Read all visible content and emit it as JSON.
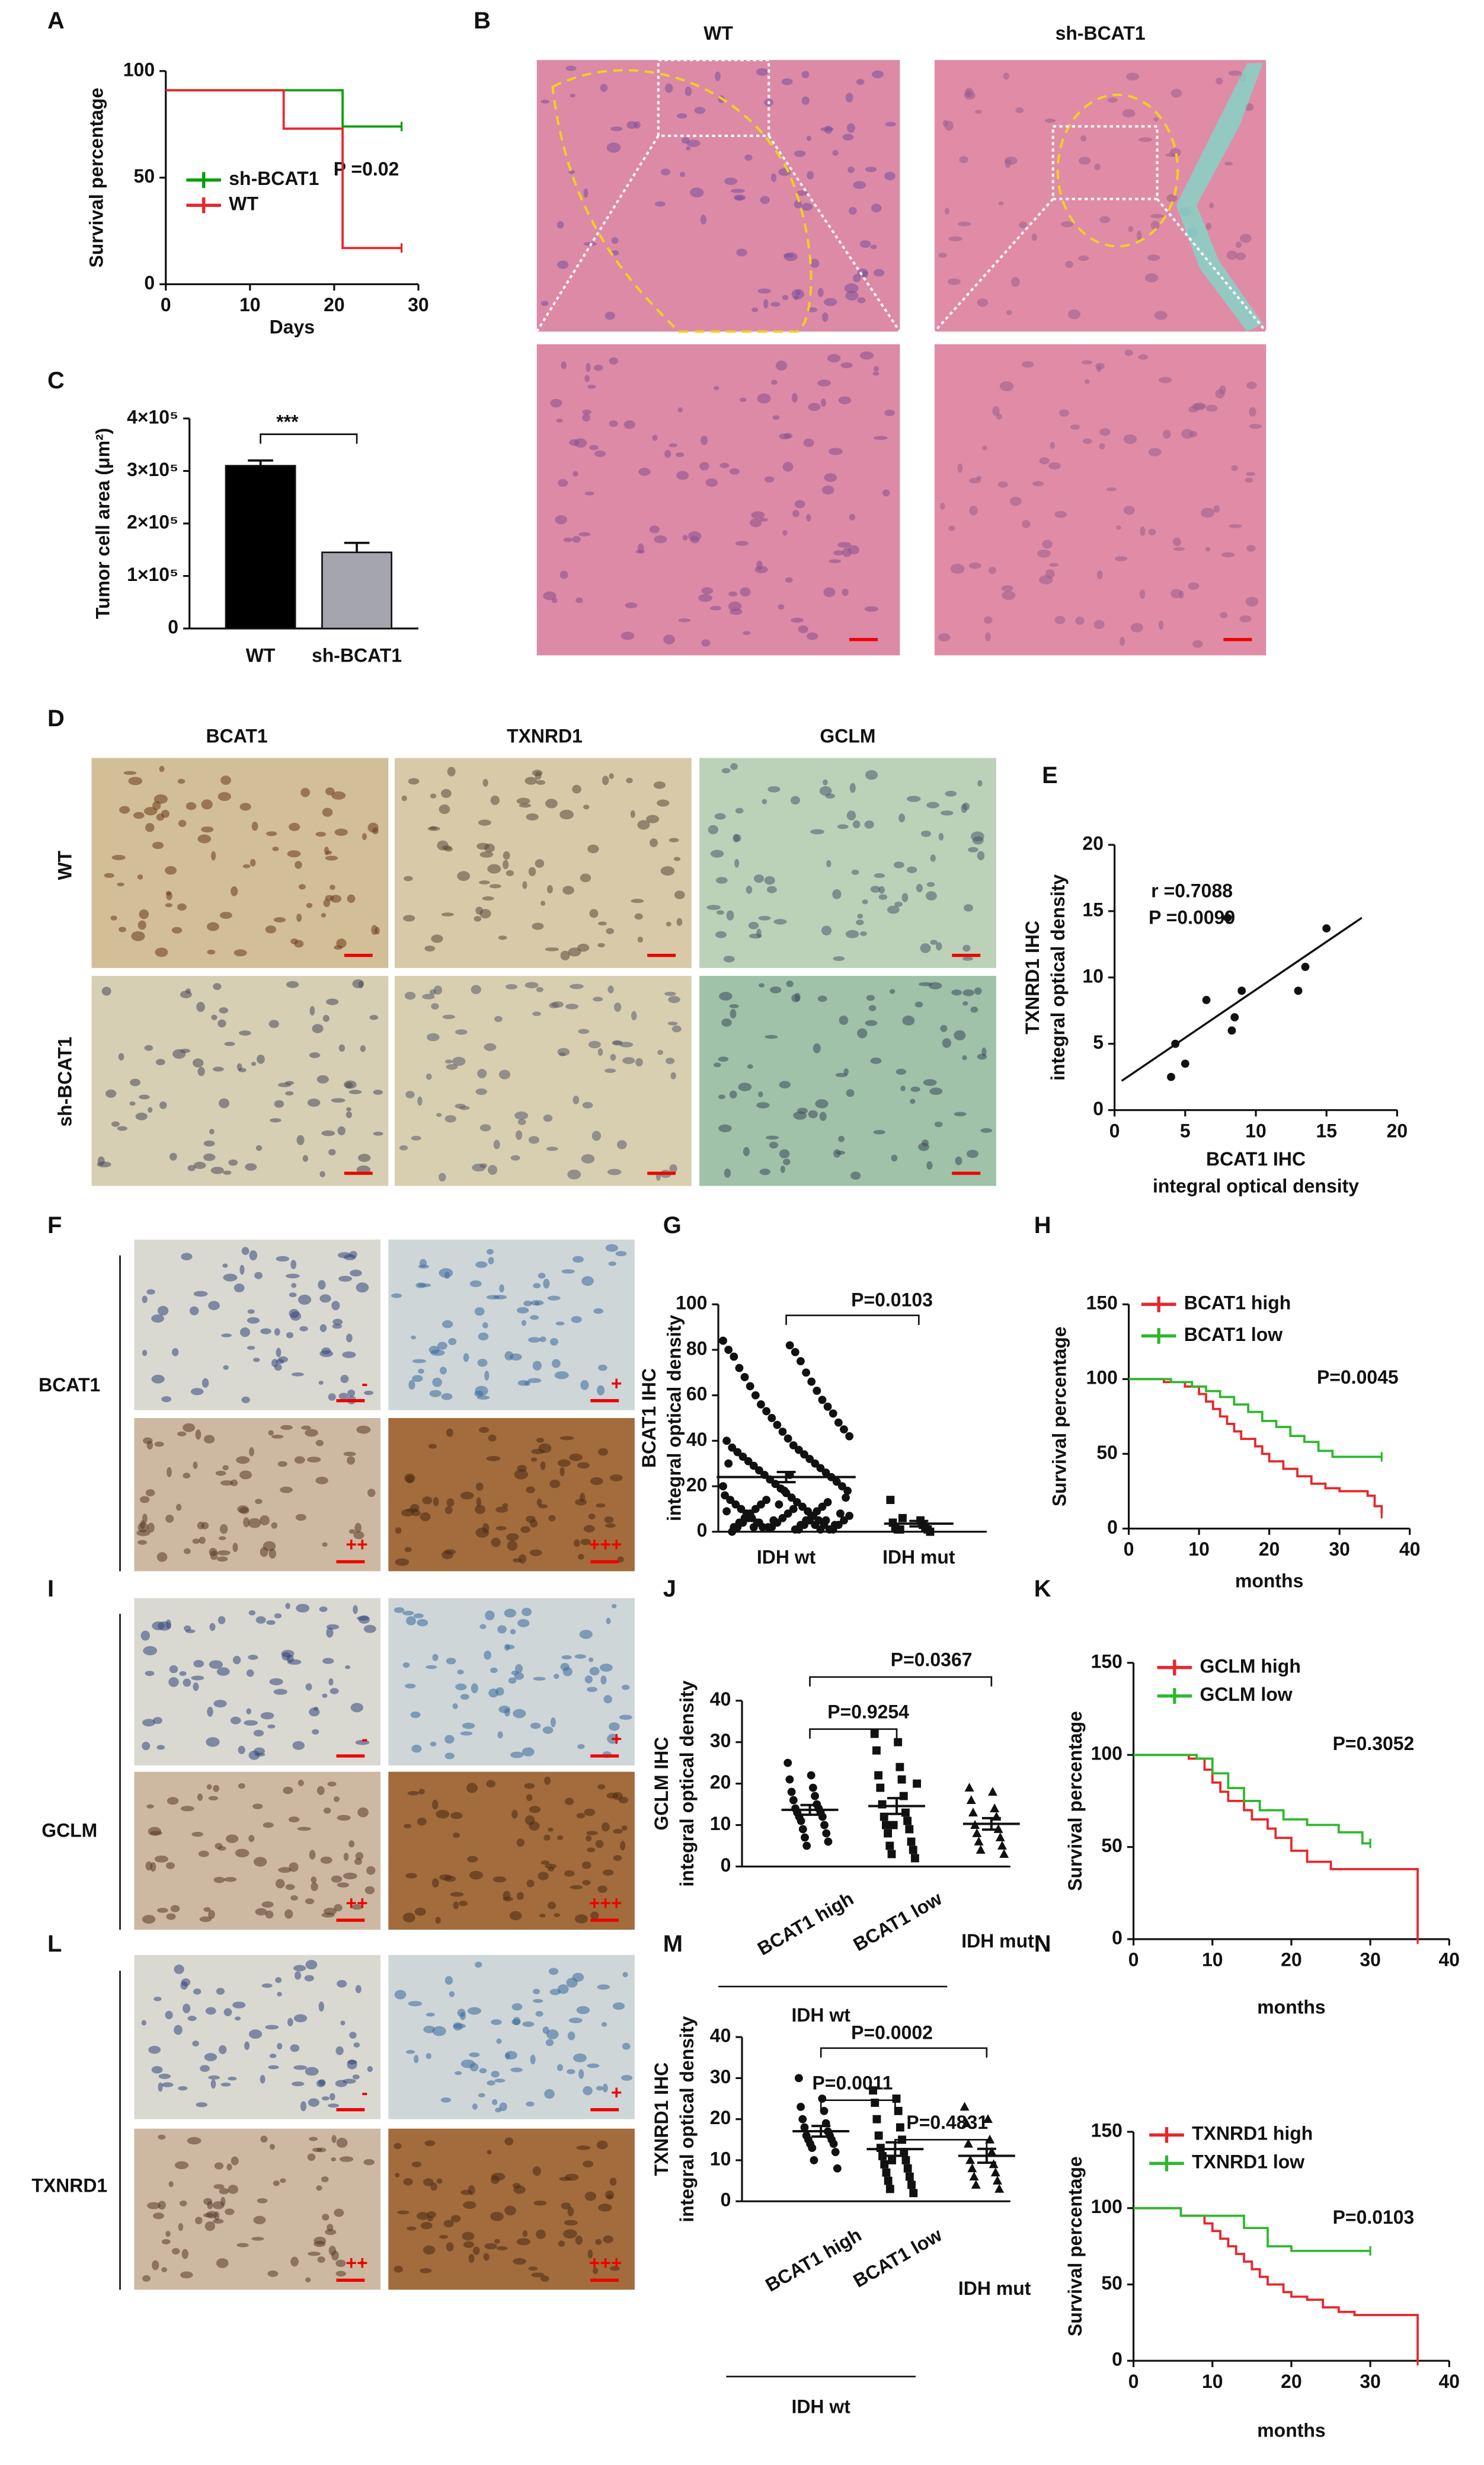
{
  "panel_labels": [
    "A",
    "B",
    "C",
    "D",
    "E",
    "F",
    "G",
    "H",
    "I",
    "J",
    "K",
    "L",
    "M",
    "N"
  ],
  "micrographs": {
    "B": {
      "columns": [
        "WT",
        "sh-BCAT1"
      ]
    },
    "D": {
      "columns": [
        "BCAT1",
        "TXNRD1",
        "GCLM"
      ],
      "rows": [
        "WT",
        "sh-BCAT1"
      ]
    },
    "F": {
      "row_label": "BCAT1",
      "grades": [
        "-",
        "+",
        "++",
        "+++"
      ]
    },
    "I": {
      "row_label": "GCLM",
      "grades": [
        "-",
        "+",
        "++",
        "+++"
      ]
    },
    "L": {
      "row_label": "TXNRD1",
      "grades": [
        "-",
        "+",
        "++",
        "+++"
      ]
    }
  },
  "chart_data": [
    {
      "type": "step",
      "ylabel": "Survival percentage",
      "xlabel": "Days",
      "xlim": [
        0,
        30
      ],
      "xticks": [
        0,
        10,
        20,
        30
      ],
      "ylim": [
        0,
        100
      ],
      "yticks": [
        0,
        50,
        100
      ],
      "series": [
        {
          "name": "sh-BCAT1",
          "color": "#00a000",
          "x": [
            0,
            21,
            28
          ],
          "values": [
            91,
            74,
            74
          ]
        },
        {
          "name": "WT",
          "color": "#e8262b",
          "x": [
            0,
            14,
            21,
            28
          ],
          "values": [
            91,
            73,
            17,
            17
          ]
        }
      ],
      "annotations": [
        "P =0.02"
      ]
    },
    {
      "type": "bar",
      "ylabel": "Tumor cell area (μm²)",
      "categories": [
        "WT",
        "sh-BCAT1"
      ],
      "values": [
        310000,
        145000
      ],
      "errors": [
        10000,
        18000
      ],
      "colors": [
        "#000000",
        "#a5a5ad"
      ],
      "ylim": [
        0,
        400000
      ],
      "yticks": [
        0,
        {
          "value": 100000,
          "label": "1×10⁵"
        },
        {
          "value": 200000,
          "label": "2×10⁵"
        },
        {
          "value": 300000,
          "label": "3×10⁵"
        },
        {
          "value": 400000,
          "label": "4×10⁵"
        }
      ],
      "annotations": [
        "***"
      ]
    },
    {
      "type": "scatter",
      "xlabel": [
        "BCAT1 IHC",
        "integral optical density"
      ],
      "ylabel": [
        "TXNRD1 IHC",
        "integral optical density"
      ],
      "x": [
        4,
        4.3,
        5,
        6.5,
        8,
        8.3,
        8.5,
        9,
        13,
        13.5,
        15
      ],
      "values": [
        2.5,
        5,
        3.5,
        8.3,
        14.5,
        6,
        7,
        9,
        9,
        10.8,
        13.7
      ],
      "xlim": [
        0,
        20
      ],
      "xticks": [
        0,
        5,
        10,
        15,
        20
      ],
      "ylim": [
        0,
        20
      ],
      "yticks": [
        0,
        5,
        10,
        15,
        20
      ],
      "trend_line": {
        "x": [
          0.5,
          17.5
        ],
        "values": [
          2.2,
          14.5
        ]
      },
      "annotations": [
        "r =0.7088",
        "P =0.0099"
      ]
    },
    {
      "type": "dot",
      "ylabel": [
        "BCAT1 IHC",
        "integral optical density"
      ],
      "categories": [
        "IDH wt",
        "IDH mut"
      ],
      "markers": [
        "circle",
        "square"
      ],
      "values": [
        [
          84,
          82,
          80,
          79,
          77,
          75,
          72,
          70,
          68,
          66,
          64,
          62,
          60,
          58,
          56,
          55,
          53,
          52,
          50,
          48,
          47,
          45,
          44,
          42,
          41,
          40,
          38,
          37,
          36,
          35,
          34,
          33,
          32,
          31,
          30,
          29,
          28,
          27,
          26,
          25,
          24,
          23,
          22,
          21,
          20,
          19,
          18,
          17,
          16,
          15,
          14,
          13,
          12,
          11,
          10,
          9,
          8,
          7,
          6,
          5,
          4,
          3,
          2,
          1,
          2,
          3,
          5,
          8,
          12,
          15,
          18,
          20,
          25,
          30,
          1,
          2,
          3,
          4,
          5,
          6,
          7,
          8,
          9,
          10,
          11,
          12,
          13,
          14,
          1,
          2,
          3,
          4,
          5,
          6,
          7,
          8,
          9,
          10,
          0,
          1,
          2,
          3,
          4,
          5,
          6,
          3,
          2,
          1,
          4,
          5
        ],
        [
          14,
          5,
          4,
          3,
          2,
          2,
          1,
          1,
          1,
          0,
          6
        ]
      ],
      "ylim": [
        0,
        100
      ],
      "yticks": [
        0,
        20,
        40,
        60,
        80,
        100
      ],
      "annotations": [
        "P=0.0103"
      ]
    },
    {
      "type": "step",
      "ylabel": "Survival percentage",
      "xlabel": "months",
      "xlim": [
        0,
        40
      ],
      "xticks": [
        0,
        10,
        20,
        30,
        40
      ],
      "ylim": [
        0,
        150
      ],
      "yticks": [
        0,
        50,
        100,
        150
      ],
      "series": [
        {
          "name": "BCAT1 high",
          "color": "#e8262b",
          "x": [
            0,
            5,
            8,
            10,
            11,
            12,
            13,
            14,
            15,
            16,
            18,
            19,
            20,
            22,
            24,
            26,
            28,
            30,
            34,
            35,
            36
          ],
          "values": [
            100,
            98,
            95,
            90,
            85,
            80,
            75,
            70,
            65,
            60,
            55,
            50,
            45,
            40,
            35,
            30,
            27,
            25,
            22,
            15,
            10
          ]
        },
        {
          "name": "BCAT1 low",
          "color": "#2db82d",
          "x": [
            0,
            6,
            9,
            11,
            13,
            15,
            17,
            19,
            21,
            23,
            25,
            27,
            29,
            36
          ],
          "values": [
            100,
            98,
            95,
            92,
            88,
            83,
            78,
            72,
            68,
            62,
            58,
            52,
            48,
            48
          ]
        }
      ],
      "annotations": [
        "P=0.0045"
      ]
    },
    {
      "type": "dot",
      "ylabel": [
        "GCLM IHC",
        "integral optical density"
      ],
      "categories": [
        "BCAT1 high",
        "BCAT1 low",
        "IDH mut"
      ],
      "markers": [
        "circle",
        "square",
        "triangle"
      ],
      "values": [
        [
          25,
          22,
          21,
          19,
          18,
          17,
          16,
          15,
          14,
          14,
          13,
          13,
          12,
          12,
          11,
          10,
          9,
          8,
          7,
          6,
          5
        ],
        [
          32,
          30,
          28,
          24,
          22,
          21,
          19,
          17,
          15,
          13,
          12,
          11,
          10,
          9,
          8,
          6,
          5,
          4,
          3,
          2,
          10,
          20
        ],
        [
          19,
          18,
          16,
          14,
          13,
          12,
          10,
          9,
          8,
          7,
          6,
          5,
          4,
          3
        ]
      ],
      "ylim": [
        0,
        40
      ],
      "yticks": [
        0,
        10,
        20,
        30,
        40
      ],
      "annotations": [
        "P=0.9254",
        "P=0.0367"
      ],
      "group_label": "IDH wt"
    },
    {
      "type": "step",
      "ylabel": "Survival percentage",
      "xlabel": "months",
      "xlim": [
        0,
        40
      ],
      "xticks": [
        0,
        10,
        20,
        30,
        40
      ],
      "ylim": [
        0,
        150
      ],
      "yticks": [
        0,
        50,
        100,
        150
      ],
      "series": [
        {
          "name": "GCLM high",
          "color": "#e8262b",
          "x": [
            0,
            7,
            9,
            10,
            11,
            12,
            14,
            15,
            17,
            18,
            20,
            22,
            25,
            36,
            36
          ],
          "values": [
            100,
            98,
            92,
            85,
            80,
            75,
            70,
            65,
            60,
            55,
            48,
            42,
            38,
            38,
            0
          ]
        },
        {
          "name": "GCLM low",
          "color": "#2db82d",
          "x": [
            0,
            8,
            10,
            12,
            14,
            16,
            19,
            22,
            26,
            29,
            30
          ],
          "values": [
            100,
            98,
            90,
            82,
            75,
            70,
            65,
            62,
            58,
            52,
            52
          ]
        }
      ],
      "annotations": [
        "P=0.3052"
      ]
    },
    {
      "type": "dot",
      "ylabel": [
        "TXNRD1 IHC",
        "integral optical density"
      ],
      "categories": [
        "BCAT1 high",
        "BCAT1 low",
        "IDH mut"
      ],
      "markers": [
        "circle",
        "square",
        "triangle"
      ],
      "values": [
        [
          30,
          25,
          23,
          22,
          20,
          19,
          18,
          17,
          16,
          16,
          15,
          15,
          14,
          14,
          13,
          12,
          10,
          8
        ],
        [
          27,
          25,
          24,
          22,
          20,
          18,
          16,
          15,
          13,
          12,
          11,
          10,
          9,
          8,
          7,
          6,
          5,
          4,
          3,
          2,
          10
        ],
        [
          23,
          20,
          19,
          15,
          14,
          12,
          10,
          9,
          8,
          7,
          6,
          5,
          4,
          3
        ]
      ],
      "ylim": [
        0,
        40
      ],
      "yticks": [
        0,
        10,
        20,
        30,
        40
      ],
      "annotations": [
        "P=0.0011",
        "P=0.0002",
        "P=0.4831"
      ],
      "group_label": "IDH wt"
    },
    {
      "type": "step",
      "ylabel": "Survival percentage",
      "xlabel": "months",
      "xlim": [
        0,
        40
      ],
      "xticks": [
        0,
        10,
        20,
        30,
        40
      ],
      "ylim": [
        0,
        150
      ],
      "yticks": [
        0,
        50,
        100,
        150
      ],
      "series": [
        {
          "name": "TXNRD1 high",
          "color": "#e8262b",
          "x": [
            0,
            6,
            9,
            10,
            11,
            12,
            13,
            14,
            15,
            16,
            17,
            19,
            20,
            22,
            24,
            26,
            28,
            36,
            36
          ],
          "values": [
            100,
            95,
            90,
            85,
            80,
            75,
            70,
            65,
            60,
            55,
            50,
            45,
            42,
            40,
            35,
            32,
            30,
            30,
            0
          ]
        },
        {
          "name": "TXNRD1 low",
          "color": "#2db82d",
          "x": [
            0,
            6,
            14,
            17,
            20,
            30
          ],
          "values": [
            100,
            95,
            87,
            75,
            72,
            72
          ]
        }
      ],
      "annotations": [
        "P=0.0103"
      ]
    }
  ]
}
